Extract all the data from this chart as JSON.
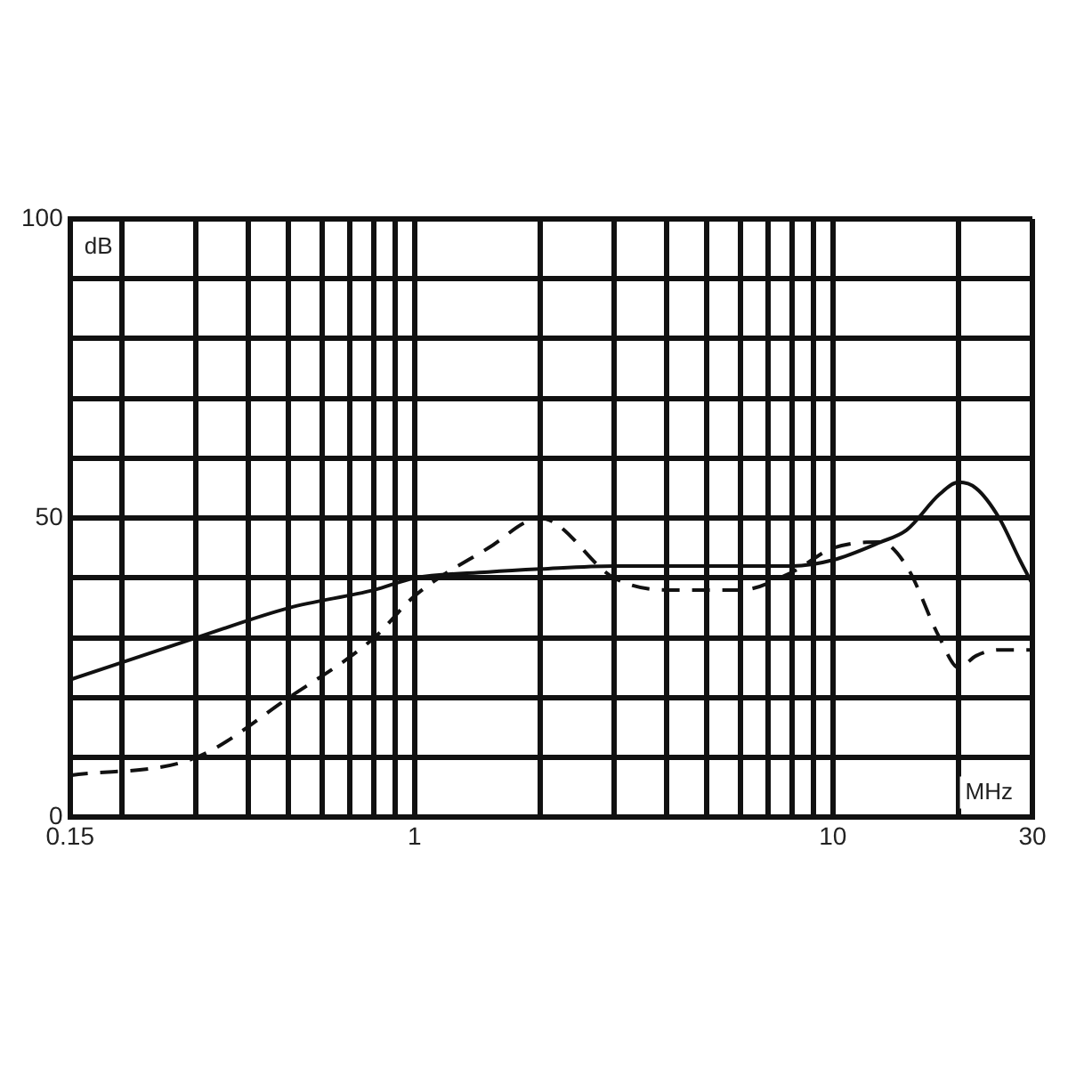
{
  "chart_data": {
    "type": "line",
    "xlabel": "MHz",
    "ylabel": "dB",
    "log": "x",
    "grid": true,
    "legend": false,
    "x": [
      0.15,
      0.3,
      0.5,
      0.8,
      1,
      1.5,
      2,
      3,
      4,
      6,
      8,
      10,
      13,
      15,
      18,
      20,
      22,
      25,
      28,
      30
    ],
    "series": [
      {
        "color": "#111111",
        "line_style": "solid",
        "values": [
          23,
          30,
          35,
          38,
          40,
          41,
          41.5,
          42,
          42,
          42,
          42,
          43,
          46,
          48,
          54,
          56,
          55,
          50,
          43,
          39
        ]
      },
      {
        "color": "#111111",
        "line_style": "dashed",
        "values": [
          7,
          10,
          20,
          30,
          37,
          45,
          50,
          40,
          38,
          38,
          41,
          45,
          46,
          42,
          30,
          25,
          27,
          28,
          28,
          28
        ]
      }
    ],
    "xlim": [
      0.15,
      30
    ],
    "ylim": [
      0,
      100
    ],
    "xticks": [
      0.15,
      {
        "value": 0.2,
        "label": null
      },
      {
        "value": 0.3,
        "label": null
      },
      {
        "value": 0.4,
        "label": null
      },
      {
        "value": 0.5,
        "label": null
      },
      {
        "value": 0.6,
        "label": null
      },
      {
        "value": 0.7,
        "label": null
      },
      {
        "value": 0.8,
        "label": null
      },
      {
        "value": 0.9,
        "label": null
      },
      1,
      {
        "value": 2,
        "label": null
      },
      {
        "value": 3,
        "label": null
      },
      {
        "value": 4,
        "label": null
      },
      {
        "value": 5,
        "label": null
      },
      {
        "value": 6,
        "label": null
      },
      {
        "value": 7,
        "label": null
      },
      {
        "value": 8,
        "label": null
      },
      {
        "value": 9,
        "label": null
      },
      10,
      {
        "value": 20,
        "label": null
      },
      30
    ],
    "yticks": [
      0,
      {
        "value": 10,
        "label": null
      },
      {
        "value": 20,
        "label": null
      },
      {
        "value": 30,
        "label": null
      },
      {
        "value": 40,
        "label": null
      },
      50,
      {
        "value": 60,
        "label": null
      },
      {
        "value": 70,
        "label": null
      },
      {
        "value": 80,
        "label": null
      },
      {
        "value": 90,
        "label": null
      },
      100
    ]
  }
}
